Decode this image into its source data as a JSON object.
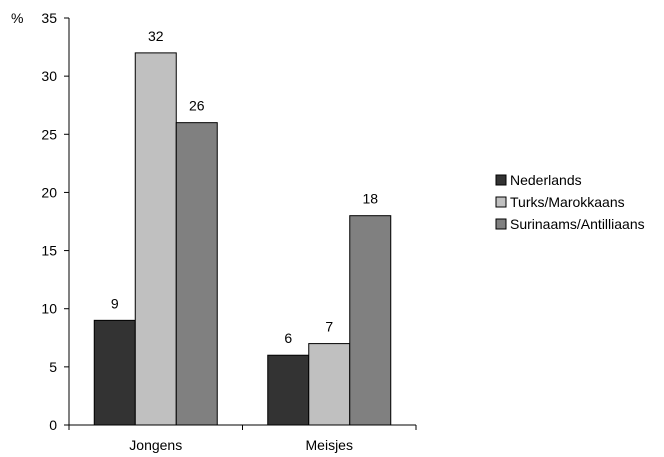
{
  "chart_data": {
    "type": "bar",
    "ylabel": "%",
    "ylim": [
      0,
      35
    ],
    "yticks": [
      0,
      5,
      10,
      15,
      20,
      25,
      30,
      35
    ],
    "categories": [
      "Jongens",
      "Meisjes"
    ],
    "series": [
      {
        "name": "Nederlands",
        "values": [
          9,
          6
        ],
        "color": "#333333"
      },
      {
        "name": "Turks/Marokkaans",
        "values": [
          32,
          7
        ],
        "color": "#c0c0c0"
      },
      {
        "name": "Surinaams/Antilliaans",
        "values": [
          26,
          18
        ],
        "color": "#808080"
      }
    ],
    "data_labels": true,
    "grid": false,
    "legend_position": "right"
  }
}
